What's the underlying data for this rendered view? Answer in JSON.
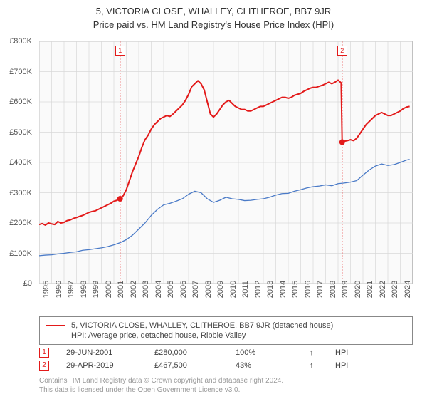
{
  "title": "5, VICTORIA CLOSE, WHALLEY, CLITHEROE, BB7 9JR",
  "subtitle": "Price paid vs. HM Land Registry's House Price Index (HPI)",
  "chart": {
    "type": "line",
    "background_color": "#fafafa",
    "grid_color": "#d8d8d8",
    "axis_color": "#888888",
    "text_color": "#555555",
    "ylim": [
      0,
      800000
    ],
    "ytick_step": 100000,
    "y_ticks": [
      "£0",
      "£100K",
      "£200K",
      "£300K",
      "£400K",
      "£500K",
      "£600K",
      "£700K",
      "£800K"
    ],
    "xlim": [
      1995,
      2025
    ],
    "x_ticks": [
      1995,
      1996,
      1997,
      1998,
      1999,
      2000,
      2001,
      2002,
      2003,
      2004,
      2005,
      2006,
      2007,
      2008,
      2009,
      2010,
      2011,
      2012,
      2013,
      2014,
      2015,
      2016,
      2017,
      2018,
      2019,
      2020,
      2021,
      2022,
      2023,
      2024
    ],
    "series": [
      {
        "name": "property",
        "label": "5, VICTORIA CLOSE, WHALLEY, CLITHEROE, BB7 9JR (detached house)",
        "color": "#e31a1a",
        "line_width": 2,
        "data": [
          [
            1995,
            195
          ],
          [
            1995.25,
            198
          ],
          [
            1995.5,
            193
          ],
          [
            1995.75,
            200
          ],
          [
            1996,
            197
          ],
          [
            1996.25,
            195
          ],
          [
            1996.5,
            205
          ],
          [
            1996.75,
            200
          ],
          [
            1997,
            202
          ],
          [
            1997.25,
            208
          ],
          [
            1997.5,
            210
          ],
          [
            1997.75,
            215
          ],
          [
            1998,
            218
          ],
          [
            1998.25,
            222
          ],
          [
            1998.5,
            225
          ],
          [
            1998.75,
            230
          ],
          [
            1999,
            235
          ],
          [
            1999.25,
            238
          ],
          [
            1999.5,
            240
          ],
          [
            1999.75,
            245
          ],
          [
            2000,
            250
          ],
          [
            2000.25,
            255
          ],
          [
            2000.5,
            260
          ],
          [
            2000.75,
            265
          ],
          [
            2001,
            272
          ],
          [
            2001.25,
            275
          ],
          [
            2001.5,
            280
          ],
          [
            2001.75,
            290
          ],
          [
            2002,
            310
          ],
          [
            2002.25,
            340
          ],
          [
            2002.5,
            370
          ],
          [
            2002.75,
            395
          ],
          [
            2003,
            420
          ],
          [
            2003.25,
            450
          ],
          [
            2003.5,
            475
          ],
          [
            2003.75,
            490
          ],
          [
            2004,
            510
          ],
          [
            2004.25,
            525
          ],
          [
            2004.5,
            535
          ],
          [
            2004.75,
            545
          ],
          [
            2005,
            550
          ],
          [
            2005.25,
            555
          ],
          [
            2005.5,
            552
          ],
          [
            2005.75,
            560
          ],
          [
            2006,
            570
          ],
          [
            2006.25,
            580
          ],
          [
            2006.5,
            590
          ],
          [
            2006.75,
            605
          ],
          [
            2007,
            625
          ],
          [
            2007.25,
            650
          ],
          [
            2007.5,
            660
          ],
          [
            2007.75,
            670
          ],
          [
            2008,
            660
          ],
          [
            2008.25,
            640
          ],
          [
            2008.5,
            600
          ],
          [
            2008.75,
            560
          ],
          [
            2009,
            550
          ],
          [
            2009.25,
            560
          ],
          [
            2009.5,
            575
          ],
          [
            2009.75,
            590
          ],
          [
            2010,
            600
          ],
          [
            2010.25,
            605
          ],
          [
            2010.5,
            595
          ],
          [
            2010.75,
            585
          ],
          [
            2011,
            580
          ],
          [
            2011.25,
            575
          ],
          [
            2011.5,
            575
          ],
          [
            2011.75,
            570
          ],
          [
            2012,
            570
          ],
          [
            2012.25,
            575
          ],
          [
            2012.5,
            580
          ],
          [
            2012.75,
            585
          ],
          [
            2013,
            585
          ],
          [
            2013.25,
            590
          ],
          [
            2013.5,
            595
          ],
          [
            2013.75,
            600
          ],
          [
            2014,
            605
          ],
          [
            2014.25,
            610
          ],
          [
            2014.5,
            615
          ],
          [
            2014.75,
            615
          ],
          [
            2015,
            612
          ],
          [
            2015.25,
            615
          ],
          [
            2015.5,
            622
          ],
          [
            2015.75,
            625
          ],
          [
            2016,
            628
          ],
          [
            2016.25,
            635
          ],
          [
            2016.5,
            640
          ],
          [
            2016.75,
            645
          ],
          [
            2017,
            648
          ],
          [
            2017.25,
            648
          ],
          [
            2017.5,
            652
          ],
          [
            2017.75,
            655
          ],
          [
            2018,
            660
          ],
          [
            2018.25,
            665
          ],
          [
            2018.5,
            660
          ],
          [
            2018.75,
            665
          ],
          [
            2019,
            672
          ],
          [
            2019.25,
            663
          ],
          [
            2019.33,
            467
          ],
          [
            2019.5,
            470
          ],
          [
            2019.75,
            472
          ],
          [
            2020,
            475
          ],
          [
            2020.25,
            472
          ],
          [
            2020.5,
            480
          ],
          [
            2020.75,
            495
          ],
          [
            2021,
            510
          ],
          [
            2021.25,
            525
          ],
          [
            2021.5,
            535
          ],
          [
            2021.75,
            545
          ],
          [
            2022,
            555
          ],
          [
            2022.25,
            560
          ],
          [
            2022.5,
            565
          ],
          [
            2022.75,
            560
          ],
          [
            2023,
            555
          ],
          [
            2023.25,
            555
          ],
          [
            2023.5,
            560
          ],
          [
            2023.75,
            565
          ],
          [
            2024,
            570
          ],
          [
            2024.25,
            578
          ],
          [
            2024.5,
            583
          ],
          [
            2024.75,
            585
          ]
        ]
      },
      {
        "name": "hpi",
        "label": "HPI: Average price, detached house, Ribble Valley",
        "color": "#4a7ac7",
        "line_width": 1.3,
        "data": [
          [
            1995,
            92
          ],
          [
            1995.5,
            94
          ],
          [
            1996,
            95
          ],
          [
            1996.5,
            98
          ],
          [
            1997,
            100
          ],
          [
            1997.5,
            103
          ],
          [
            1998,
            105
          ],
          [
            1998.5,
            110
          ],
          [
            1999,
            112
          ],
          [
            1999.5,
            115
          ],
          [
            2000,
            118
          ],
          [
            2000.5,
            122
          ],
          [
            2001,
            128
          ],
          [
            2001.5,
            135
          ],
          [
            2002,
            145
          ],
          [
            2002.5,
            160
          ],
          [
            2003,
            180
          ],
          [
            2003.5,
            200
          ],
          [
            2004,
            225
          ],
          [
            2004.5,
            245
          ],
          [
            2005,
            260
          ],
          [
            2005.5,
            265
          ],
          [
            2006,
            272
          ],
          [
            2006.5,
            280
          ],
          [
            2007,
            295
          ],
          [
            2007.5,
            305
          ],
          [
            2008,
            300
          ],
          [
            2008.5,
            280
          ],
          [
            2009,
            268
          ],
          [
            2009.5,
            275
          ],
          [
            2010,
            285
          ],
          [
            2010.5,
            280
          ],
          [
            2011,
            278
          ],
          [
            2011.5,
            274
          ],
          [
            2012,
            275
          ],
          [
            2012.5,
            278
          ],
          [
            2013,
            280
          ],
          [
            2013.5,
            285
          ],
          [
            2014,
            292
          ],
          [
            2014.5,
            297
          ],
          [
            2015,
            298
          ],
          [
            2015.5,
            305
          ],
          [
            2016,
            310
          ],
          [
            2016.5,
            316
          ],
          [
            2017,
            320
          ],
          [
            2017.5,
            322
          ],
          [
            2018,
            326
          ],
          [
            2018.5,
            323
          ],
          [
            2019,
            330
          ],
          [
            2019.5,
            332
          ],
          [
            2020,
            335
          ],
          [
            2020.5,
            340
          ],
          [
            2021,
            358
          ],
          [
            2021.5,
            375
          ],
          [
            2022,
            388
          ],
          [
            2022.5,
            395
          ],
          [
            2023,
            390
          ],
          [
            2023.5,
            393
          ],
          [
            2024,
            400
          ],
          [
            2024.5,
            408
          ],
          [
            2024.75,
            410
          ]
        ]
      }
    ],
    "sale_markers": [
      {
        "id": "1",
        "x": 2001.5,
        "y": 280,
        "color": "#e31a1a"
      },
      {
        "id": "2",
        "x": 2019.33,
        "y": 467,
        "color": "#e31a1a"
      }
    ]
  },
  "legend": {
    "items": [
      {
        "color": "#e31a1a",
        "width": 2,
        "label": "5, VICTORIA CLOSE, WHALLEY, CLITHEROE, BB7 9JR (detached house)"
      },
      {
        "color": "#4a7ac7",
        "width": 1.3,
        "label": "HPI: Average price, detached house, Ribble Valley"
      }
    ]
  },
  "sales": [
    {
      "id": "1",
      "date": "29-JUN-2001",
      "price": "£280,000",
      "pct": "100%",
      "arrow": "↑",
      "suffix": "HPI",
      "color": "#e31a1a"
    },
    {
      "id": "2",
      "date": "29-APR-2019",
      "price": "£467,500",
      "pct": "43%",
      "arrow": "↑",
      "suffix": "HPI",
      "color": "#e31a1a"
    }
  ],
  "footer": {
    "line1": "Contains HM Land Registry data © Crown copyright and database right 2024.",
    "line2": "This data is licensed under the Open Government Licence v3.0."
  }
}
